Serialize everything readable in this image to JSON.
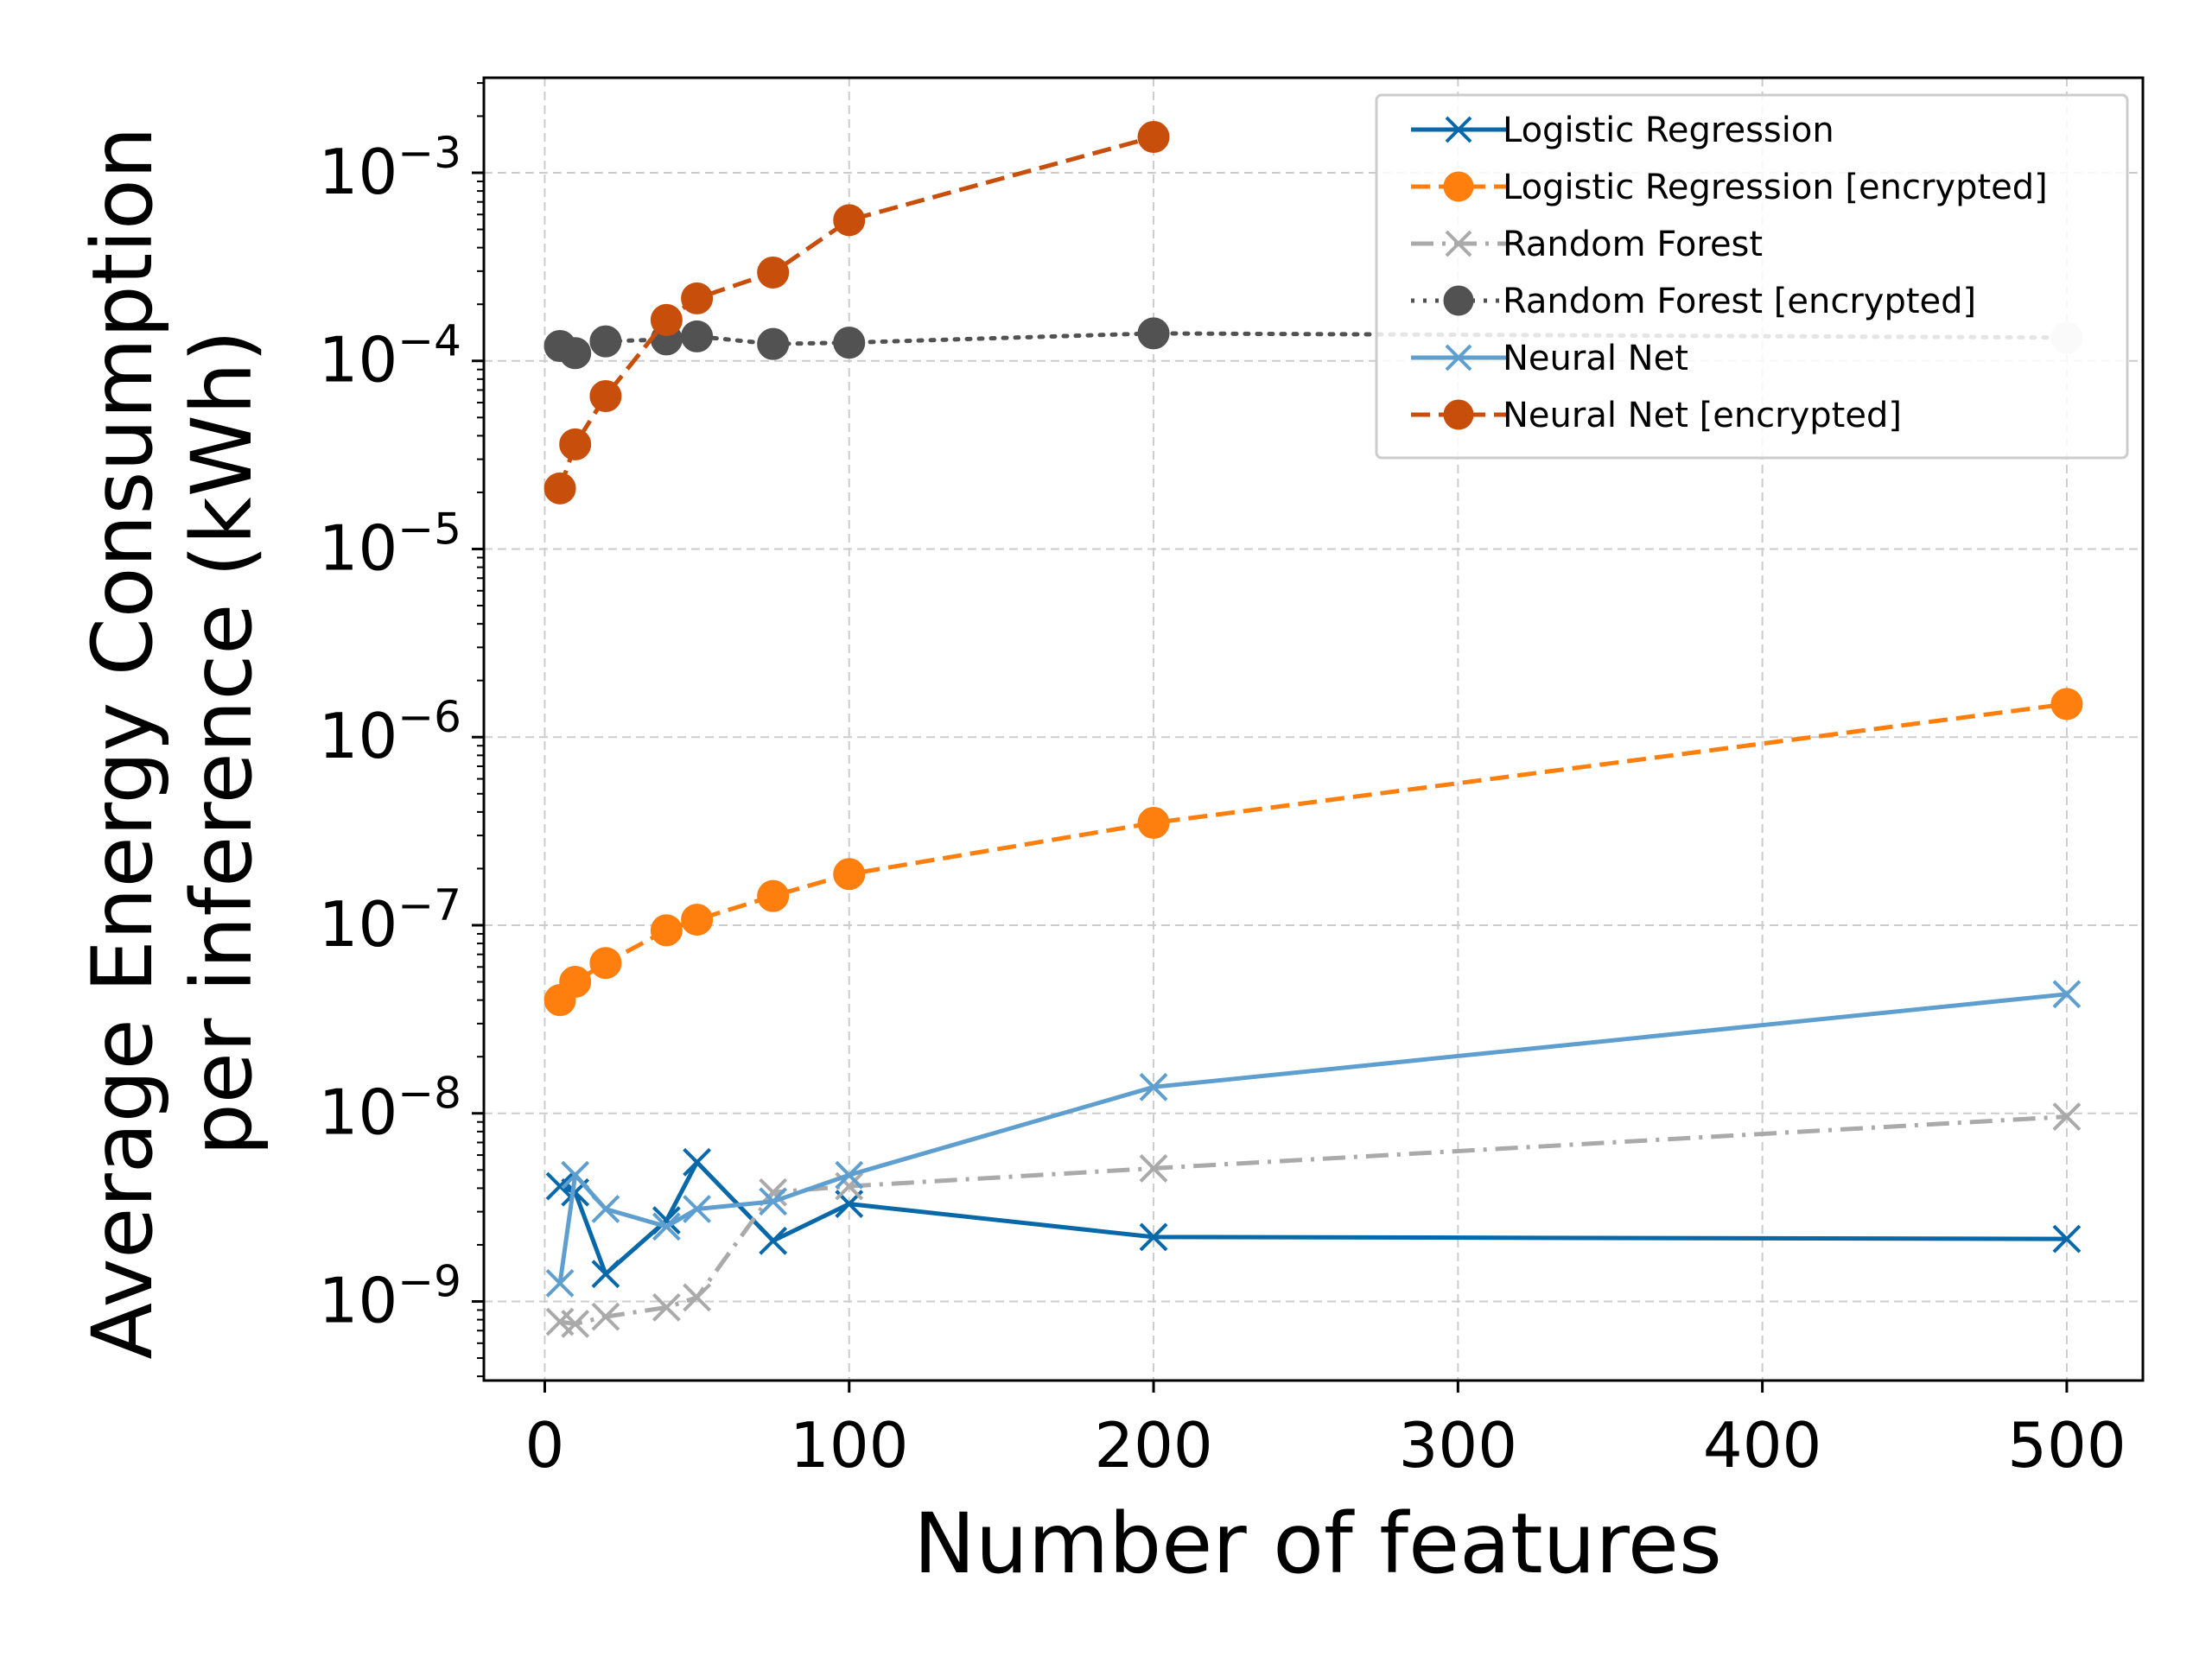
{
  "chart_data": {
    "type": "line",
    "title": "",
    "xlabel": "Number of features",
    "ylabel_lines": [
      "Average Energy Consumption",
      "per inference (kWh)"
    ],
    "x_scale": "linear",
    "y_scale": "log",
    "xlim": [
      -20,
      525
    ],
    "ylim": [
      3.8e-10,
      0.0032
    ],
    "x_ticks": [
      0,
      100,
      200,
      300,
      400,
      500
    ],
    "x_tick_labels": [
      "0",
      "100",
      "200",
      "300",
      "400",
      "500"
    ],
    "y_ticks": [
      1e-09,
      1e-08,
      1e-07,
      1e-06,
      1e-05,
      0.0001,
      0.001
    ],
    "y_tick_labels": [
      {
        "base": "10",
        "exp": "−9"
      },
      {
        "base": "10",
        "exp": "−8"
      },
      {
        "base": "10",
        "exp": "−7"
      },
      {
        "base": "10",
        "exp": "−6"
      },
      {
        "base": "10",
        "exp": "−5"
      },
      {
        "base": "10",
        "exp": "−4"
      },
      {
        "base": "10",
        "exp": "−3"
      }
    ],
    "grid": true,
    "legend_position": "top-right",
    "series": [
      {
        "name": "Logistic Regression",
        "color": "#0868a8",
        "marker": "x",
        "dash": "solid",
        "x": [
          5,
          10,
          20,
          40,
          50,
          75,
          100,
          200,
          500
        ],
        "y": [
          4.1e-09,
          3.8e-09,
          1.4e-09,
          2.7e-09,
          5.5e-09,
          2.1e-09,
          3.3e-09,
          2.2e-09,
          2.15e-09
        ]
      },
      {
        "name": "Logistic Regression [encrypted]",
        "color": "#ff7f0e",
        "marker": "o",
        "dash": "dashed",
        "x": [
          5,
          10,
          20,
          40,
          50,
          75,
          100,
          200,
          500
        ],
        "y": [
          4e-08,
          5e-08,
          6.3e-08,
          9.4e-08,
          1.07e-07,
          1.43e-07,
          1.87e-07,
          3.5e-07,
          1.5e-06
        ]
      },
      {
        "name": "Random Forest",
        "color": "#aaaaaa",
        "marker": "x",
        "dash": "dashdot",
        "x": [
          5,
          10,
          20,
          40,
          50,
          75,
          100,
          200,
          500
        ],
        "y": [
          7.8e-10,
          7.6e-10,
          8.3e-10,
          9.3e-10,
          1.05e-09,
          3.8e-09,
          4.1e-09,
          5.1e-09,
          9.6e-09
        ]
      },
      {
        "name": "Random Forest [encrypted]",
        "color": "#525252",
        "marker": "o",
        "dash": "dotted",
        "x": [
          5,
          10,
          20,
          40,
          50,
          75,
          100,
          200,
          500
        ],
        "y": [
          0.00012,
          0.00011,
          0.000127,
          0.00013,
          0.000135,
          0.000123,
          0.000125,
          0.00014,
          0.000133
        ],
        "marker_colors": {
          "500": "#dddddd"
        }
      },
      {
        "name": "Neural Net",
        "color": "#5f9fd0",
        "marker": "x",
        "dash": "solid",
        "x": [
          5,
          10,
          20,
          40,
          50,
          75,
          100,
          200,
          500
        ],
        "y": [
          1.25e-09,
          4.7e-09,
          3.1e-09,
          2.5e-09,
          3.1e-09,
          3.4e-09,
          4.7e-09,
          1.38e-08,
          4.3e-08
        ]
      },
      {
        "name": "Neural Net [encrypted]",
        "color": "#c84f0b",
        "marker": "o",
        "dash": "dashed",
        "x": [
          5,
          10,
          20,
          40,
          50,
          75,
          100,
          200
        ],
        "y": [
          2.1e-05,
          3.6e-05,
          6.5e-05,
          0.000165,
          0.000215,
          0.000295,
          0.00056,
          0.00155
        ]
      }
    ]
  }
}
